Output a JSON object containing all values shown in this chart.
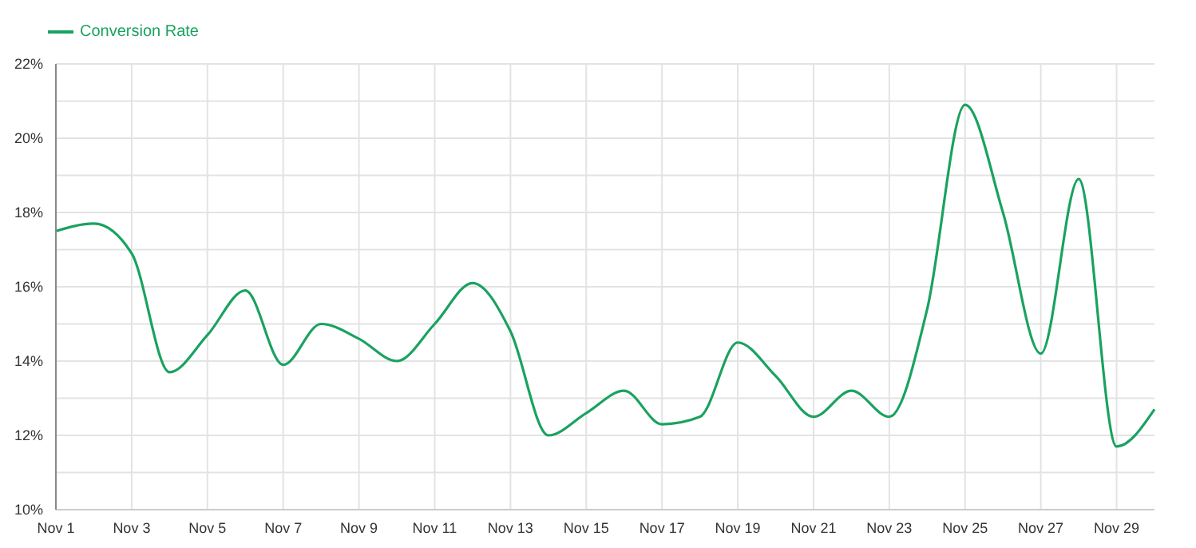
{
  "chart_data": {
    "type": "line",
    "categories": [
      "Nov 1",
      null,
      "Nov 3",
      null,
      "Nov 5",
      null,
      "Nov 7",
      null,
      "Nov 9",
      null,
      "Nov 11",
      null,
      "Nov 13",
      null,
      "Nov 15",
      null,
      "Nov 17",
      null,
      "Nov 19",
      null,
      "Nov 21",
      null,
      "Nov 23",
      null,
      "Nov 25",
      null,
      "Nov 27",
      null,
      "Nov 29",
      null
    ],
    "series": [
      {
        "name": "Conversion Rate",
        "color": "#1aa260",
        "values": [
          17.5,
          17.7,
          16.9,
          13.7,
          14.7,
          15.9,
          13.9,
          15.0,
          14.6,
          14.0,
          15.0,
          16.1,
          14.8,
          12.0,
          12.6,
          13.2,
          12.3,
          12.5,
          14.5,
          13.6,
          12.5,
          13.2,
          12.5,
          15.4,
          20.9,
          18.0,
          14.2,
          18.9,
          11.7,
          12.7
        ]
      }
    ],
    "ylim": [
      10,
      22
    ],
    "yticks": [
      {
        "value": 10,
        "label": "10%"
      },
      {
        "value": 11,
        "label": null
      },
      {
        "value": 12,
        "label": "12%"
      },
      {
        "value": 13,
        "label": null
      },
      {
        "value": 14,
        "label": "14%"
      },
      {
        "value": 15,
        "label": null
      },
      {
        "value": 16,
        "label": "16%"
      },
      {
        "value": 17,
        "label": null
      },
      {
        "value": 18,
        "label": "18%"
      },
      {
        "value": 19,
        "label": null
      },
      {
        "value": 20,
        "label": "20%"
      },
      {
        "value": 21,
        "label": null
      },
      {
        "value": 22,
        "label": "22%"
      }
    ],
    "grid": true,
    "legend": "top left",
    "marker": "none",
    "line_style": "solid"
  }
}
